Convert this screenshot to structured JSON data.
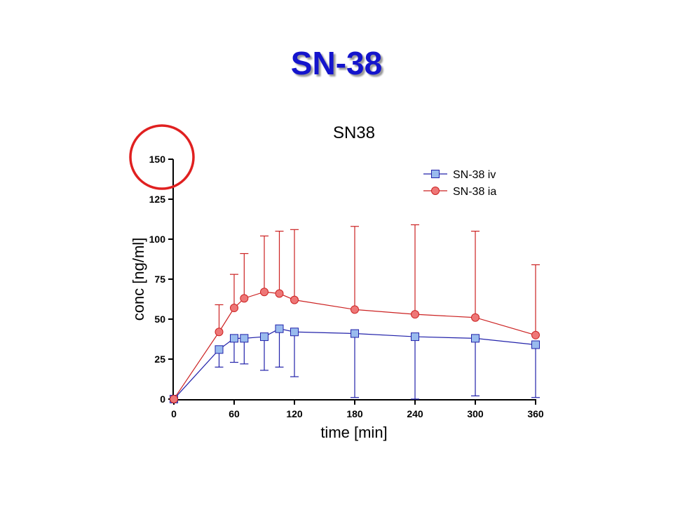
{
  "slide": {
    "title": "SN-38"
  },
  "colors": {
    "title": "#1414cc",
    "iv_line": "#2222aa",
    "iv_marker": "#99bbee",
    "ia_line": "#cc2222",
    "ia_marker": "#ee7777",
    "highlight_circle": "#e02020"
  },
  "chart_data": {
    "type": "line",
    "title": "SN38",
    "xlabel": "time [min]",
    "ylabel": "conc [ng/ml]",
    "xlim": [
      0,
      360
    ],
    "ylim": [
      0,
      150
    ],
    "xticks": [
      0,
      60,
      120,
      180,
      240,
      300,
      360
    ],
    "yticks": [
      0,
      25,
      50,
      75,
      100,
      125,
      150
    ],
    "grid": false,
    "legend_position": "top-right",
    "annotation": "red circle highlighting the y-axis maximum 150",
    "series": [
      {
        "name": "SN-38 iv",
        "marker": "square",
        "error_direction": "down",
        "x": [
          0,
          45,
          60,
          70,
          90,
          105,
          120,
          180,
          240,
          300,
          360
        ],
        "y": [
          0,
          31,
          38,
          38,
          39,
          44,
          42,
          41,
          39,
          38,
          34
        ],
        "error": [
          0,
          11,
          15,
          16,
          21,
          24,
          28,
          40,
          39,
          36,
          33
        ]
      },
      {
        "name": "SN-38 ia",
        "marker": "circle",
        "error_direction": "up",
        "x": [
          0,
          45,
          60,
          70,
          90,
          105,
          120,
          180,
          240,
          300,
          360
        ],
        "y": [
          0,
          42,
          57,
          63,
          67,
          66,
          62,
          56,
          53,
          51,
          40
        ],
        "error": [
          0,
          17,
          21,
          28,
          35,
          39,
          44,
          52,
          56,
          54,
          44
        ]
      }
    ]
  }
}
